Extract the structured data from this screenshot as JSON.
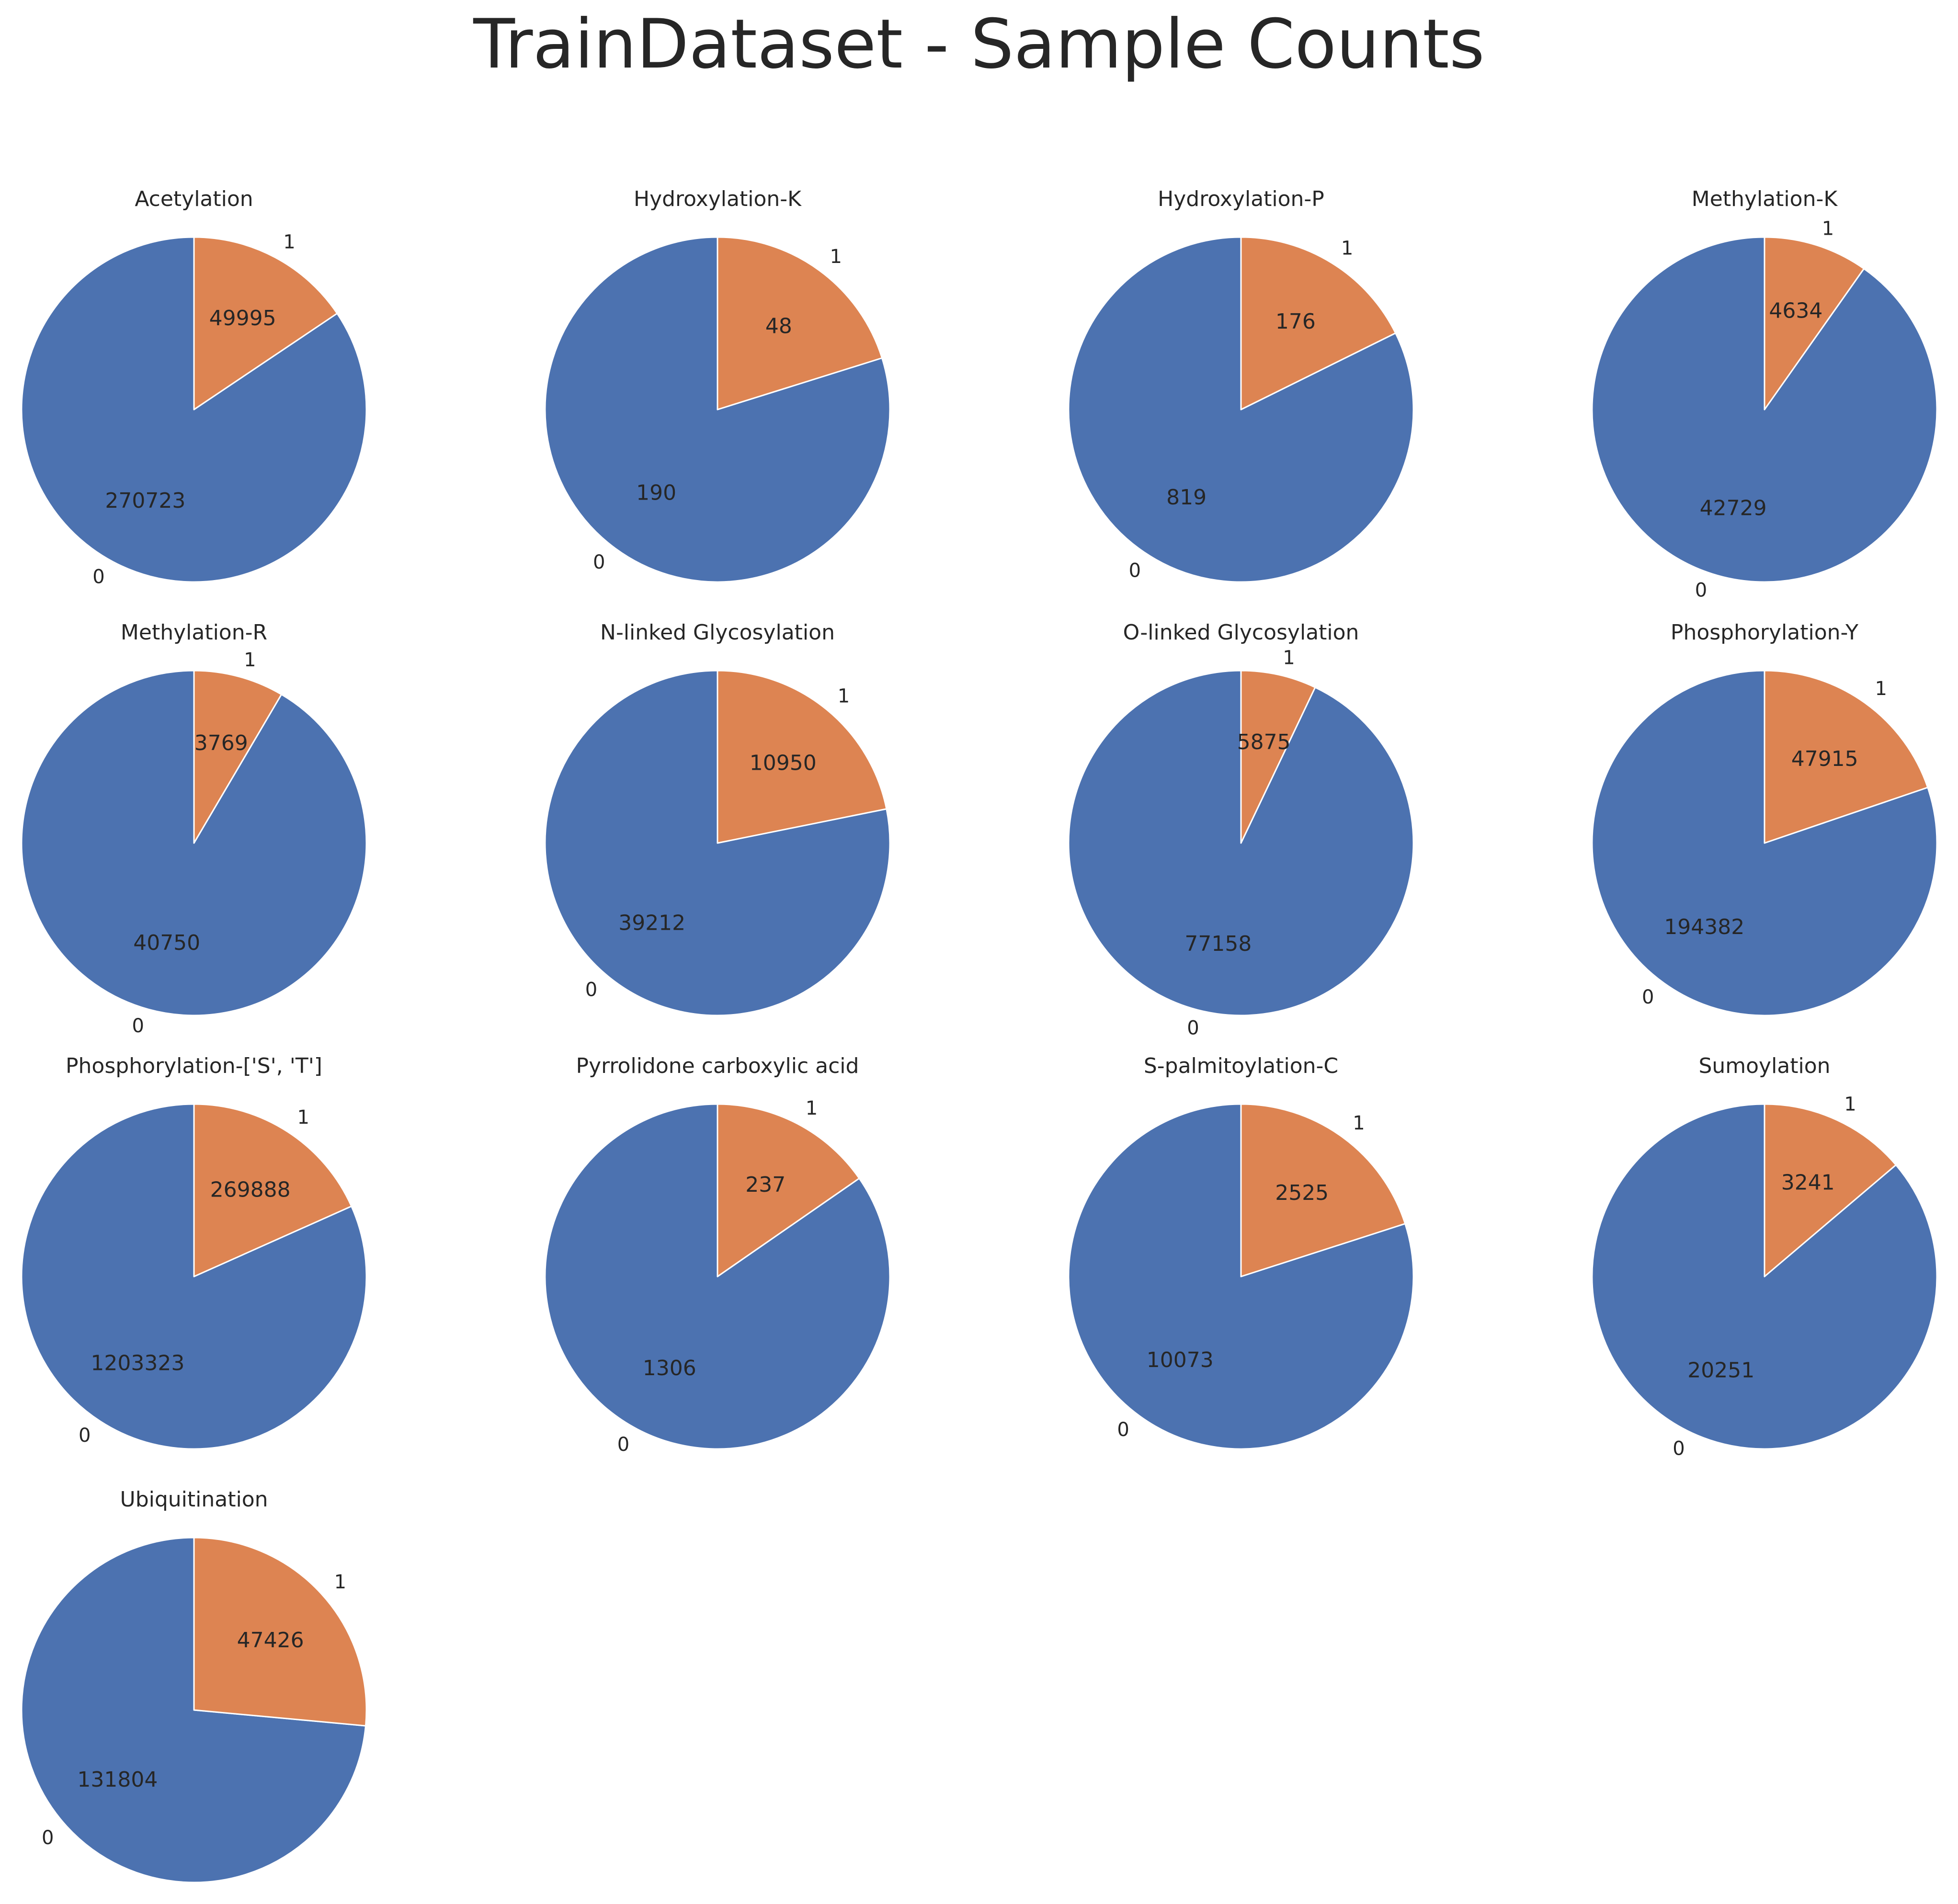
{
  "figure_title": "TrainDataset - Sample Counts",
  "colors": {
    "class_0": "#4c72b0",
    "class_1": "#dd8452",
    "edge": "#ffffff"
  },
  "chart_data": {
    "type": "pie",
    "layout": "4 columns x 4 rows grid",
    "start_angle": "90 degrees, counterclockwise",
    "class_labels": [
      "0",
      "1"
    ],
    "pies": [
      {
        "title": "Acetylation",
        "values": [
          270723,
          49995
        ]
      },
      {
        "title": "Hydroxylation-K",
        "values": [
          190,
          48
        ]
      },
      {
        "title": "Hydroxylation-P",
        "values": [
          819,
          176
        ]
      },
      {
        "title": "Methylation-K",
        "values": [
          42729,
          4634
        ]
      },
      {
        "title": "Methylation-R",
        "values": [
          40750,
          3769
        ]
      },
      {
        "title": "N-linked Glycosylation",
        "values": [
          39212,
          10950
        ]
      },
      {
        "title": "O-linked Glycosylation",
        "values": [
          77158,
          5875
        ]
      },
      {
        "title": "Phosphorylation-Y",
        "values": [
          194382,
          47915
        ]
      },
      {
        "title": "Phosphorylation-['S', 'T']",
        "values": [
          1203323,
          269888
        ]
      },
      {
        "title": "Pyrrolidone carboxylic acid",
        "values": [
          1306,
          237
        ]
      },
      {
        "title": "S-palmitoylation-C",
        "values": [
          10073,
          2525
        ]
      },
      {
        "title": "Sumoylation",
        "values": [
          20251,
          3241
        ]
      },
      {
        "title": "Ubiquitination",
        "values": [
          131804,
          47426
        ]
      }
    ]
  }
}
